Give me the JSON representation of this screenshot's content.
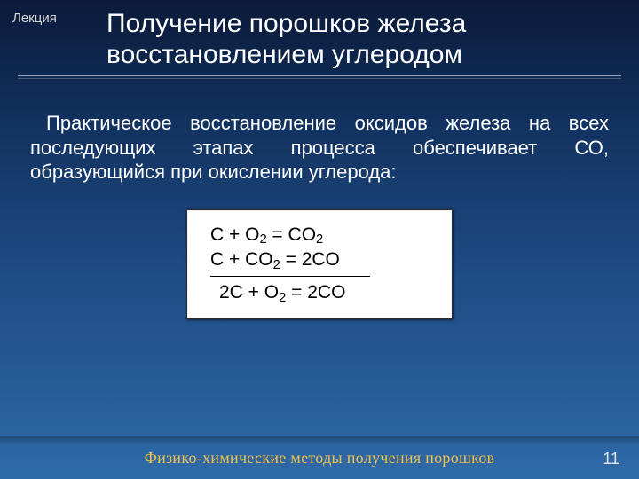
{
  "header": {
    "label": "Лекция",
    "title_line1": "Получение порошков железа",
    "title_line2": "восстановлением углеродом"
  },
  "paragraph": "Практическое восстановление оксидов железа на всех последующих этапах процесса обеспечивает СО, образующийся при окислении углерода:",
  "formula": {
    "eq1_pre": "C + O",
    "eq1_sub": "2",
    "eq1_mid": " = CO",
    "eq1_sub2": "2",
    "eq2_pre": "C + CO",
    "eq2_sub": "2",
    "eq2_post": " = 2CO",
    "eq3_pre": "2C + O",
    "eq3_sub": "2",
    "eq3_post": " = 2CO"
  },
  "footer": {
    "text": "Физико-химические методы получения порошков",
    "page": "11"
  },
  "colors": {
    "accent": "#f0c24a",
    "title": "#ffffff",
    "box_bg": "#ffffff",
    "box_text": "#000000"
  }
}
